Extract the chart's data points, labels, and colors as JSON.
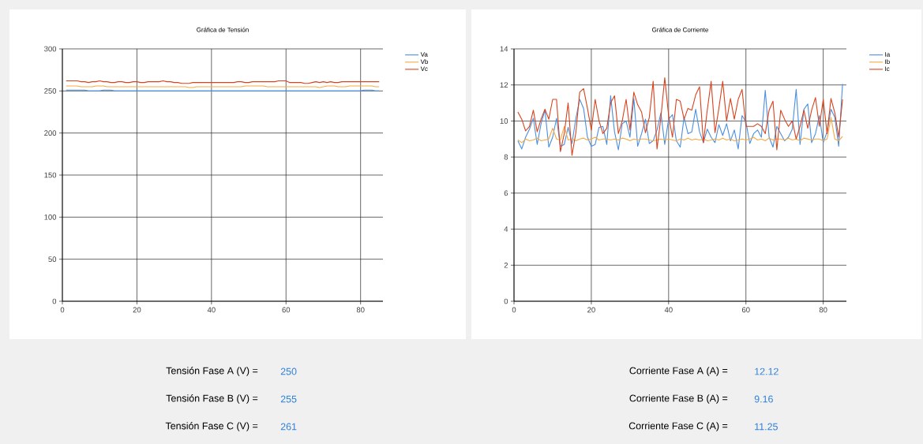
{
  "chart_data": [
    {
      "type": "line",
      "title": "Gráfica de Tensión",
      "x": [
        1,
        2,
        3,
        4,
        5,
        6,
        7,
        8,
        9,
        10,
        11,
        12,
        13,
        14,
        15,
        16,
        17,
        18,
        19,
        20,
        21,
        22,
        23,
        24,
        25,
        26,
        27,
        28,
        29,
        30,
        31,
        32,
        33,
        34,
        35,
        36,
        37,
        38,
        39,
        40,
        41,
        42,
        43,
        44,
        45,
        46,
        47,
        48,
        49,
        50,
        51,
        52,
        53,
        54,
        55,
        56,
        57,
        58,
        59,
        60,
        61,
        62,
        63,
        64,
        65,
        66,
        67,
        68,
        69,
        70,
        71,
        72,
        73,
        74,
        75,
        76,
        77,
        78,
        79,
        80,
        81,
        82,
        83,
        84,
        85
      ],
      "xlim": [
        0,
        86
      ],
      "ylim": [
        0,
        300
      ],
      "xticks": [
        0,
        20,
        40,
        60,
        80
      ],
      "yticks": [
        0,
        50,
        100,
        150,
        200,
        250,
        300
      ],
      "grid": true,
      "legend": "top right",
      "series": [
        {
          "name": "Va",
          "color": "#4a8fe0",
          "values": [
            251,
            251,
            251,
            251,
            251,
            251,
            250,
            250,
            250,
            250,
            251,
            251,
            251,
            250,
            250,
            250,
            250,
            250,
            250,
            250,
            250,
            250,
            250,
            250,
            250,
            250,
            250,
            250,
            250,
            250,
            250,
            250,
            250,
            250,
            250,
            250,
            250,
            250,
            250,
            250,
            250,
            250,
            250,
            250,
            250,
            250,
            250,
            250,
            250,
            250,
            250,
            250,
            250,
            250,
            250,
            250,
            250,
            250,
            250,
            250,
            250,
            250,
            250,
            250,
            250,
            250,
            250,
            250,
            250,
            250,
            250,
            250,
            250,
            250,
            250,
            250,
            250,
            250,
            250,
            250,
            251,
            251,
            251,
            250,
            250
          ]
        },
        {
          "name": "Vb",
          "color": "#f7a940",
          "values": [
            256,
            256,
            256,
            256,
            255,
            255,
            255,
            255,
            256,
            256,
            256,
            255,
            255,
            255,
            255,
            255,
            255,
            255,
            255,
            255,
            255,
            255,
            255,
            255,
            255,
            255,
            255,
            255,
            255,
            255,
            255,
            255,
            255,
            254,
            254,
            255,
            255,
            255,
            255,
            255,
            255,
            255,
            255,
            255,
            255,
            255,
            255,
            255,
            256,
            256,
            256,
            256,
            256,
            256,
            255,
            255,
            255,
            255,
            255,
            255,
            255,
            255,
            255,
            255,
            255,
            255,
            255,
            255,
            254,
            255,
            256,
            256,
            256,
            255,
            255,
            255,
            256,
            256,
            256,
            256,
            256,
            256,
            256,
            255,
            255
          ]
        },
        {
          "name": "Vc",
          "color": "#d9431e",
          "values": [
            262,
            262,
            262,
            262,
            261,
            261,
            260,
            261,
            261,
            262,
            261,
            261,
            260,
            260,
            261,
            261,
            260,
            260,
            261,
            261,
            260,
            260,
            261,
            261,
            261,
            261,
            262,
            261,
            261,
            260,
            260,
            259,
            259,
            259,
            260,
            260,
            260,
            260,
            260,
            260,
            260,
            260,
            260,
            260,
            260,
            260,
            261,
            261,
            260,
            260,
            261,
            261,
            261,
            261,
            261,
            261,
            261,
            262,
            262,
            262,
            260,
            260,
            260,
            260,
            259,
            259,
            260,
            261,
            260,
            261,
            260,
            261,
            260,
            260,
            261,
            261,
            261,
            261,
            261,
            261,
            261,
            261,
            261,
            261,
            261
          ]
        }
      ]
    },
    {
      "type": "line",
      "title": "Gráfica de Corriente",
      "x": [
        1,
        2,
        3,
        4,
        5,
        6,
        7,
        8,
        9,
        10,
        11,
        12,
        13,
        14,
        15,
        16,
        17,
        18,
        19,
        20,
        21,
        22,
        23,
        24,
        25,
        26,
        27,
        28,
        29,
        30,
        31,
        32,
        33,
        34,
        35,
        36,
        37,
        38,
        39,
        40,
        41,
        42,
        43,
        44,
        45,
        46,
        47,
        48,
        49,
        50,
        51,
        52,
        53,
        54,
        55,
        56,
        57,
        58,
        59,
        60,
        61,
        62,
        63,
        64,
        65,
        66,
        67,
        68,
        69,
        70,
        71,
        72,
        73,
        74,
        75,
        76,
        77,
        78,
        79,
        80,
        81,
        82,
        83,
        84,
        85
      ],
      "xlim": [
        0,
        86
      ],
      "ylim": [
        0,
        14
      ],
      "xticks": [
        0,
        20,
        40,
        60,
        80
      ],
      "yticks": [
        0,
        2,
        4,
        6,
        8,
        10,
        12,
        14
      ],
      "grid": true,
      "legend": "top right",
      "series": [
        {
          "name": "Ia",
          "color": "#4a8fe0",
          "values": [
            8.9,
            8.45,
            9.1,
            9.55,
            10.15,
            8.7,
            9.85,
            10.6,
            8.55,
            9.1,
            10.15,
            8.6,
            8.7,
            9.65,
            8.75,
            10.15,
            11.2,
            10.7,
            9.1,
            8.6,
            8.7,
            9.65,
            9.7,
            8.7,
            11.4,
            9.4,
            8.4,
            9.85,
            10,
            9.1,
            11.25,
            8.6,
            9.3,
            10.1,
            8.75,
            8.9,
            9.5,
            10.45,
            8.7,
            10.1,
            10.35,
            8.9,
            8.55,
            10.2,
            9.3,
            9.4,
            10.65,
            9.4,
            8.8,
            9.55,
            9.1,
            8.8,
            9.8,
            9.2,
            9.85,
            8.9,
            9.5,
            8.45,
            10.3,
            9.95,
            8.75,
            9.3,
            9.5,
            9.1,
            11.7,
            9.1,
            8.55,
            9.7,
            9.3,
            8.9,
            9.1,
            9.55,
            11.75,
            8.7,
            10.65,
            10.95,
            8.8,
            9.3,
            10.3,
            8.8,
            9.4,
            10.65,
            10.2,
            8.6,
            12.05
          ]
        },
        {
          "name": "Ib",
          "color": "#f7a940",
          "values": [
            8.95,
            8.8,
            9.0,
            8.9,
            8.95,
            9.05,
            8.9,
            8.95,
            9.0,
            9.6,
            9.0,
            8.95,
            9.7,
            8.95,
            9.0,
            8.9,
            9.0,
            9.05,
            8.95,
            9.0,
            9.1,
            8.95,
            9.0,
            9.0,
            8.95,
            9.0,
            8.95,
            9.05,
            9.0,
            8.9,
            9.0,
            8.95,
            9.0,
            9.0,
            8.95,
            8.9,
            8.95,
            9.0,
            8.95,
            9.0,
            8.95,
            8.9,
            9.0,
            8.95,
            9.05,
            8.95,
            9.0,
            8.95,
            9.0,
            8.9,
            8.95,
            9.0,
            8.95,
            9.05,
            8.95,
            9.0,
            8.9,
            8.95,
            9.0,
            8.95,
            9.0,
            9.1,
            8.95,
            9.0,
            8.9,
            9.05,
            8.95,
            9.0,
            9.0,
            8.95,
            9.05,
            8.95,
            9.0,
            8.9,
            9.05,
            9.0,
            8.95,
            9.0,
            9.0,
            8.9,
            9.0,
            10.2,
            9.0,
            8.9,
            9.15
          ]
        },
        {
          "name": "Ic",
          "color": "#d9431e",
          "values": [
            10.5,
            10.1,
            9.45,
            9.7,
            10.6,
            9.4,
            10.1,
            10.65,
            10.1,
            11.2,
            11.2,
            8.3,
            9.3,
            11.0,
            8.1,
            9.35,
            11.6,
            11.8,
            10.7,
            9.5,
            11.2,
            10,
            9.3,
            9.6,
            11.0,
            11.4,
            9.3,
            10,
            11.2,
            9.5,
            11.6,
            10.9,
            10.5,
            9.35,
            10.2,
            12.2,
            8.45,
            10.2,
            12.4,
            10.3,
            9.1,
            11.2,
            11.1,
            10.1,
            10.7,
            10.6,
            11.45,
            11.9,
            8.8,
            10.6,
            12.2,
            9.35,
            10.7,
            12.2,
            10,
            11.25,
            10.1,
            11.2,
            11.75,
            9.7,
            9.7,
            9.7,
            9.85,
            9.7,
            9.3,
            10.6,
            11.1,
            8.4,
            10.6,
            10.1,
            9.7,
            10,
            9.0,
            9.7,
            10.6,
            9.6,
            10.6,
            11.3,
            9.7,
            11.2,
            9.3,
            11.25,
            10.45,
            9.1,
            11.2
          ]
        }
      ]
    },
    {
      "type": "other",
      "annotations": [
        "Tensión Fase A (V) =",
        "250",
        "Tensión Fase B (V) =",
        "255",
        "Tensión Fase C (V) =",
        "261",
        "Corriente Fase A (A) =",
        "12.12",
        "Corriente Fase B (A) =",
        "9.16",
        "Corriente Fase C (A) =",
        "11.25"
      ]
    }
  ]
}
